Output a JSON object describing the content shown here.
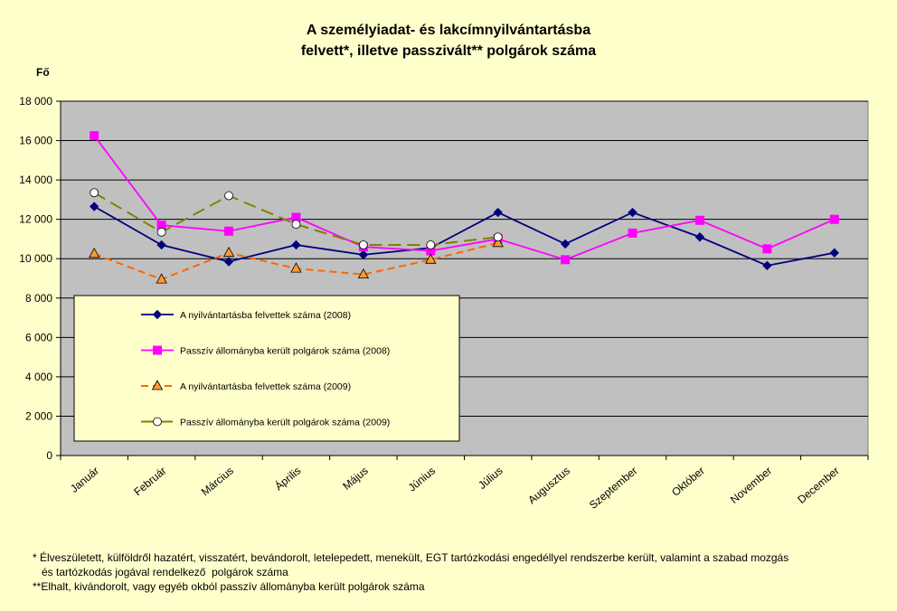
{
  "title_line1": "A személyiadat- és lakcímnyilvántartásba",
  "title_line2": "felvett*, illetve passzivált** polgárok száma",
  "footnote1": "* Élveszületett, külföldről hazatért, visszatért, bevándorolt, letelepedett, menekült, EGT tartózkodási engedéllyel rendszerbe került, valamint a szabad mozgás",
  "footnote1b": "   és tartózkodás jogával rendelkező  polgárok száma",
  "footnote2": "**Elhalt, kivándorolt, vagy egyéb okból passzív állományba került polgárok száma",
  "colors": {
    "background": "#FFFFCC",
    "plot_area": "#C0C0C0",
    "legend_bg": "#FFFFCC"
  },
  "chart_data": {
    "type": "line",
    "ylabel": "Fő",
    "ylim": [
      0,
      18000
    ],
    "yticks": [
      0,
      2000,
      4000,
      6000,
      8000,
      10000,
      12000,
      14000,
      16000,
      18000
    ],
    "ytick_labels": [
      "0",
      "2 000",
      "4 000",
      "6 000",
      "8 000",
      "10 000",
      "12 000",
      "14 000",
      "16 000",
      "18 000"
    ],
    "categories": [
      "Január",
      "Február",
      "Március",
      "Április",
      "Május",
      "Június",
      "Július",
      "Augusztus",
      "Szeptember",
      "Október",
      "November",
      "December"
    ],
    "grid": true,
    "legend_position": "lower-left inside plot",
    "series": [
      {
        "name": "A nyilvántartásba felvettek száma (2008)",
        "color": "#000080",
        "dash": "solid",
        "marker": "diamond",
        "values": [
          12650,
          10700,
          9850,
          10700,
          10200,
          10550,
          12350,
          10750,
          12350,
          11100,
          9650,
          10300
        ]
      },
      {
        "name": "Passzív állományba került polgárok száma (2008)",
        "color": "#FF00FF",
        "dash": "solid",
        "marker": "square",
        "values": [
          16250,
          11700,
          11400,
          12100,
          10600,
          10400,
          11000,
          9950,
          11300,
          11950,
          10500,
          12000
        ]
      },
      {
        "name": "A nyilvántartásba felvettek száma (2009)",
        "color": "#FF6600",
        "dash": "dashed",
        "marker": "triangle",
        "values": [
          10250,
          8950,
          10300,
          9500,
          9200,
          9950,
          10800,
          null,
          null,
          null,
          null,
          null
        ]
      },
      {
        "name": "Passzív állományba került polgárok száma (2009)",
        "color": "#808000",
        "dash": "longdash",
        "marker": "circle",
        "values": [
          13350,
          11350,
          13200,
          11750,
          10700,
          10700,
          11100,
          null,
          null,
          null,
          null,
          null
        ]
      }
    ]
  }
}
